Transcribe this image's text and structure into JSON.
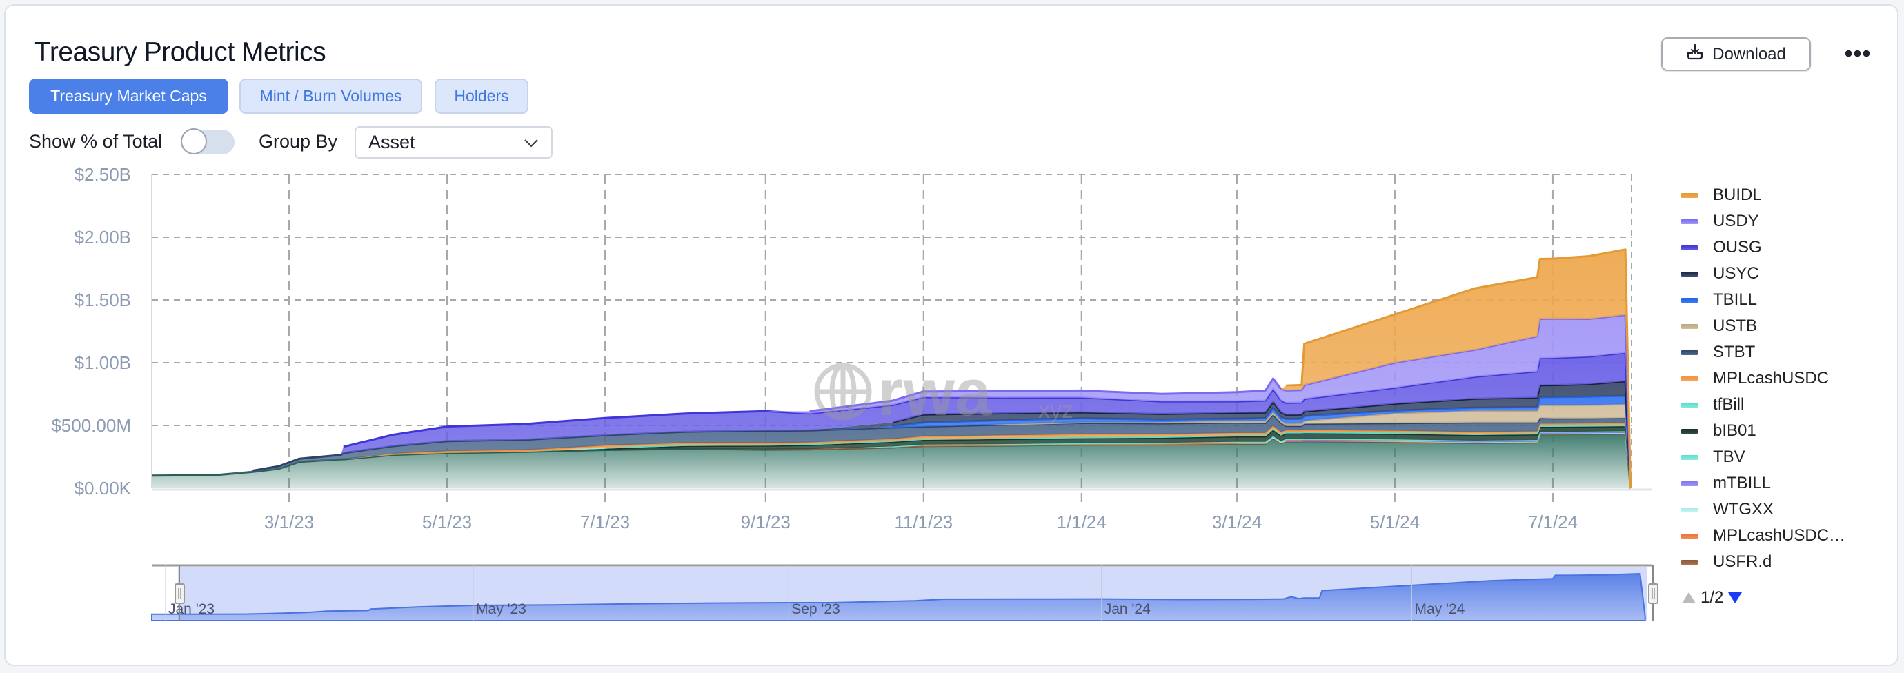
{
  "header": {
    "title": "Treasury Product Metrics",
    "download_label": "Download",
    "more_label": "•••"
  },
  "tabs": [
    {
      "label": "Treasury Market Caps",
      "active": true
    },
    {
      "label": "Mint / Burn Volumes",
      "active": false
    },
    {
      "label": "Holders",
      "active": false
    }
  ],
  "controls": {
    "show_pct_label": "Show % of Total",
    "show_pct_on": false,
    "group_by_label": "Group By",
    "group_by_value": "Asset"
  },
  "watermark": {
    "main": "rwa",
    "sub": "xyz"
  },
  "legend_pager": {
    "label": "1/2",
    "up_color": "#bbbbbb",
    "down_color": "#1a3cf5"
  },
  "navigator": {
    "labels": [
      "Jan '23",
      "May '23",
      "Sep '23",
      "Jan '24",
      "May '24"
    ],
    "label_dates": [
      "2023-01-01",
      "2023-05-01",
      "2023-09-01",
      "2024-01-01",
      "2024-05-01"
    ],
    "fill_color": "#5b82e8",
    "mask_color": "#d3dbfa"
  },
  "chart_data": {
    "type": "area",
    "stacked": true,
    "title": "",
    "xlabel": "",
    "ylabel": "",
    "ylim": [
      0,
      2500
    ],
    "y_unit": "$M",
    "y_ticks": [
      0,
      500,
      1000,
      1500,
      2000,
      2500
    ],
    "y_tick_labels": [
      "$0.00K",
      "$500.00M",
      "$1.00B",
      "$1.50B",
      "$2.00B",
      "$2.50B"
    ],
    "x_ticks": [
      "2023-03-01",
      "2023-05-01",
      "2023-07-01",
      "2023-09-01",
      "2023-11-01",
      "2024-01-01",
      "2024-03-01",
      "2024-05-01",
      "2024-07-01"
    ],
    "x_tick_labels": [
      "3/1/23",
      "5/1/23",
      "7/1/23",
      "9/1/23",
      "11/1/23",
      "1/1/24",
      "3/1/24",
      "5/1/24",
      "7/1/24"
    ],
    "grid": true,
    "legend_position": "right",
    "x": [
      "2023-01-07",
      "2023-02-01",
      "2023-02-15",
      "2023-02-25",
      "2023-03-05",
      "2023-03-21",
      "2023-03-22",
      "2023-04-10",
      "2023-05-01",
      "2023-06-01",
      "2023-07-01",
      "2023-08-01",
      "2023-09-01",
      "2023-09-18",
      "2023-10-20",
      "2023-11-01",
      "2023-12-01",
      "2024-01-01",
      "2024-02-01",
      "2024-03-01",
      "2024-03-12",
      "2024-03-15",
      "2024-03-18",
      "2024-03-20",
      "2024-03-26",
      "2024-03-27",
      "2024-05-01",
      "2024-06-01",
      "2024-06-25",
      "2024-06-26",
      "2024-07-01",
      "2024-07-15",
      "2024-07-29",
      "2024-07-31"
    ],
    "series": [
      {
        "name": "BUIDL",
        "color": "#eea84f",
        "line": "#e39a35",
        "values": [
          0,
          0,
          0,
          0,
          0,
          0,
          0,
          0,
          0,
          0,
          0,
          0,
          0,
          0,
          0,
          0,
          0,
          0,
          0,
          0,
          0,
          0,
          0,
          40,
          40,
          330,
          385,
          490,
          470,
          478,
          478,
          500,
          522,
          0
        ]
      },
      {
        "name": "USDY",
        "color": "#a397f6",
        "line": "#7a6af0",
        "values": [
          0,
          0,
          0,
          0,
          0,
          0,
          0,
          0,
          0,
          0,
          0,
          0,
          0,
          18,
          35,
          46,
          52,
          56,
          60,
          73,
          80,
          85,
          90,
          99,
          100,
          110,
          200,
          215,
          280,
          313,
          313,
          300,
          302,
          0
        ]
      },
      {
        "name": "OUSG",
        "color": "#6a60e6",
        "line": "#4035d8",
        "values": [
          0,
          0,
          0,
          0,
          0,
          0,
          50,
          90,
          116,
          125,
          137,
          145,
          156,
          135,
          138,
          138,
          125,
          118,
          100,
          91,
          95,
          100,
          95,
          94,
          95,
          100,
          127,
          175,
          210,
          217,
          217,
          220,
          226,
          0
        ]
      },
      {
        "name": "USYC",
        "color": "#3d4d6e",
        "line": "#16223c",
        "values": [
          0,
          0,
          0,
          0,
          0,
          0,
          0,
          0,
          0,
          0,
          0,
          0,
          0,
          0,
          30,
          64,
          55,
          47,
          45,
          47,
          45,
          50,
          40,
          33,
          33,
          35,
          55,
          70,
          75,
          95,
          95,
          100,
          115,
          0
        ]
      },
      {
        "name": "TBILL",
        "color": "#3a78f2",
        "line": "#2563eb",
        "values": [
          0,
          0,
          0,
          0,
          0,
          0,
          0,
          0,
          0,
          0,
          0,
          0,
          0,
          0,
          10,
          33,
          32,
          32,
          20,
          16,
          20,
          30,
          25,
          38,
          38,
          38,
          20,
          25,
          28,
          60,
          65,
          65,
          68,
          0
        ]
      },
      {
        "name": "USTB",
        "color": "#d2bf9e",
        "line": "#bda67e",
        "values": [
          0,
          0,
          0,
          0,
          0,
          0,
          0,
          0,
          0,
          0,
          0,
          0,
          0,
          0,
          0,
          0,
          3,
          5,
          10,
          16,
          18,
          22,
          18,
          18,
          20,
          25,
          80,
          95,
          95,
          105,
          105,
          108,
          110,
          0
        ]
      },
      {
        "name": "STBT",
        "color": "#4f6b8f",
        "line": "#2c4468",
        "values": [
          0,
          0,
          10,
          20,
          25,
          35,
          50,
          60,
          80,
          82,
          82,
          90,
          99,
          95,
          92,
          77,
          85,
          90,
          85,
          82,
          80,
          90,
          75,
          35,
          35,
          50,
          60,
          75,
          70,
          45,
          42,
          40,
          40,
          0
        ]
      },
      {
        "name": "MPLcashUSDC",
        "color": "#f6a65c",
        "line": "#ef9440",
        "values": [
          0,
          0,
          0,
          0,
          0,
          0,
          0,
          10,
          15,
          15,
          17,
          15,
          12,
          13,
          15,
          20,
          22,
          22,
          20,
          18,
          18,
          22,
          18,
          15,
          15,
          15,
          15,
          15,
          15,
          15,
          15,
          15,
          15,
          0
        ]
      },
      {
        "name": "tfBill",
        "color": "#7fe9da",
        "line": "#5fd8c6",
        "values": [
          0,
          0,
          0,
          0,
          0,
          0,
          0,
          0,
          0,
          0,
          8,
          8,
          8,
          8,
          8,
          8,
          8,
          10,
          10,
          10,
          10,
          10,
          10,
          10,
          10,
          10,
          10,
          10,
          10,
          10,
          10,
          10,
          10,
          0
        ]
      },
      {
        "name": "bIB01",
        "color": "#2e4d3f",
        "line": "#1b3328",
        "values": [
          0,
          0,
          0,
          0,
          0,
          0,
          0,
          0,
          0,
          0,
          10,
          22,
          30,
          32,
          36,
          38,
          40,
          40,
          40,
          42,
          42,
          50,
          44,
          44,
          44,
          44,
          44,
          44,
          44,
          40,
          40,
          40,
          40,
          0
        ]
      },
      {
        "name": "TBV",
        "color": "#86efe0",
        "line": "#62dccb",
        "values": [
          0,
          0,
          0,
          0,
          0,
          0,
          0,
          0,
          0,
          0,
          0,
          0,
          0,
          0,
          6,
          6,
          6,
          6,
          6,
          6,
          6,
          6,
          6,
          6,
          6,
          6,
          6,
          6,
          6,
          6,
          6,
          6,
          6,
          0
        ]
      },
      {
        "name": "mTBILL",
        "color": "#9e96f2",
        "line": "#8479ea",
        "values": [
          0,
          0,
          0,
          0,
          0,
          0,
          0,
          0,
          0,
          0,
          0,
          0,
          0,
          0,
          0,
          0,
          0,
          0,
          0,
          0,
          0,
          0,
          0,
          4,
          4,
          4,
          4,
          4,
          4,
          4,
          4,
          4,
          4,
          0
        ]
      },
      {
        "name": "WTGXX",
        "color": "#c9f5f5",
        "line": "#a8e8ea",
        "values": [
          0,
          0,
          0,
          0,
          0,
          0,
          0,
          0,
          0,
          0,
          0,
          0,
          0,
          0,
          0,
          0,
          0,
          0,
          0,
          4,
          4,
          4,
          4,
          4,
          4,
          4,
          4,
          4,
          4,
          4,
          4,
          4,
          4,
          0
        ]
      },
      {
        "name": "MPLcashUSDC…",
        "color": "#f28a55",
        "line": "#e9733a",
        "values": [
          0,
          0,
          0,
          0,
          0,
          0,
          0,
          0,
          0,
          0,
          0,
          0,
          0,
          0,
          0,
          3,
          3,
          3,
          3,
          3,
          3,
          3,
          3,
          3,
          3,
          3,
          3,
          3,
          3,
          3,
          3,
          3,
          3,
          0
        ]
      },
      {
        "name": "USFR.d",
        "color": "#a8714f",
        "line": "#8c5a3c",
        "values": [
          0,
          0,
          0,
          0,
          0,
          0,
          0,
          0,
          0,
          0,
          0,
          0,
          2,
          2,
          2,
          2,
          2,
          2,
          2,
          2,
          2,
          2,
          2,
          2,
          2,
          2,
          2,
          2,
          2,
          2,
          2,
          2,
          2,
          0
        ]
      },
      {
        "name": "",
        "color": "#3f7d6f",
        "line": "#2b5d53",
        "values": [
          100,
          105,
          130,
          155,
          210,
          230,
          230,
          265,
          280,
          290,
          305,
          315,
          307,
          310,
          325,
          336,
          340,
          347,
          350,
          355,
          355,
          400,
          360,
          373,
          373,
          375,
          370,
          360,
          365,
          430,
          430,
          432,
          435,
          0
        ]
      }
    ]
  }
}
